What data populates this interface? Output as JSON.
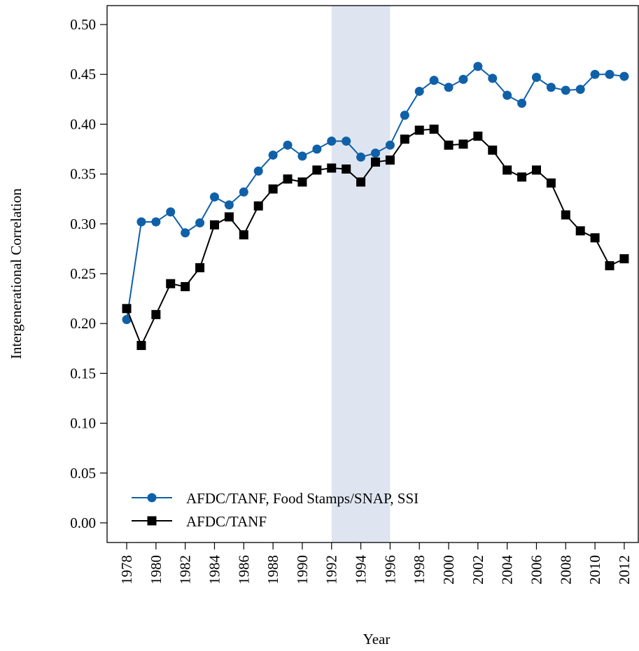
{
  "chart_data": {
    "type": "line",
    "x_label": "Year",
    "y_label": "Intergenerational Correlation",
    "x": [
      1978,
      1979,
      1980,
      1981,
      1982,
      1983,
      1984,
      1985,
      1986,
      1987,
      1988,
      1989,
      1990,
      1991,
      1992,
      1993,
      1994,
      1995,
      1996,
      1997,
      1998,
      1999,
      2000,
      2001,
      2002,
      2003,
      2004,
      2005,
      2006,
      2007,
      2008,
      2009,
      2010,
      2011,
      2012
    ],
    "series": [
      {
        "name": "AFDC/TANF, Food Stamps/SNAP, SSI",
        "color": "#1060a8",
        "marker": "circle",
        "values": [
          0.204,
          0.302,
          0.302,
          0.312,
          0.291,
          0.301,
          0.327,
          0.319,
          0.332,
          0.353,
          0.369,
          0.379,
          0.368,
          0.375,
          0.383,
          0.383,
          0.367,
          0.371,
          0.379,
          0.409,
          0.433,
          0.444,
          0.437,
          0.445,
          0.458,
          0.446,
          0.429,
          0.421,
          0.447,
          0.437,
          0.434,
          0.435,
          0.45,
          0.45,
          0.448
        ]
      },
      {
        "name": "AFDC/TANF",
        "color": "#000000",
        "marker": "square",
        "values": [
          0.215,
          0.178,
          0.209,
          0.24,
          0.237,
          0.256,
          0.299,
          0.307,
          0.289,
          0.318,
          0.335,
          0.345,
          0.342,
          0.354,
          0.356,
          0.355,
          0.342,
          0.362,
          0.364,
          0.385,
          0.394,
          0.395,
          0.379,
          0.38,
          0.388,
          0.374,
          0.354,
          0.347,
          0.354,
          0.341,
          0.309,
          0.293,
          0.286,
          0.258,
          0.265
        ]
      }
    ],
    "shade": [
      1992,
      1996
    ],
    "shade_color": "#dfe5f0",
    "xlim": [
      1976.66,
      2012.96
    ],
    "ylim": [
      -0.0197,
      0.519
    ],
    "xticks": [
      1978,
      1980,
      1982,
      1984,
      1986,
      1988,
      1990,
      1992,
      1994,
      1996,
      1998,
      2000,
      2002,
      2004,
      2006,
      2008,
      2010,
      2012
    ],
    "yticks": [
      {
        "value": 0,
        "label": "0.00"
      },
      {
        "value": 0.05,
        "label": "0.05"
      },
      {
        "value": 0.1,
        "label": "0.10"
      },
      {
        "value": 0.15,
        "label": "0.15"
      },
      {
        "value": 0.2,
        "label": "0.20"
      },
      {
        "value": 0.25,
        "label": "0.25"
      },
      {
        "value": 0.3,
        "label": "0.30"
      },
      {
        "value": 0.35,
        "label": "0.35"
      },
      {
        "value": 0.4,
        "label": "0.40"
      },
      {
        "value": 0.45,
        "label": "0.45"
      },
      {
        "value": 0.5,
        "label": "0.50"
      }
    ],
    "legend": "bottom-left"
  }
}
